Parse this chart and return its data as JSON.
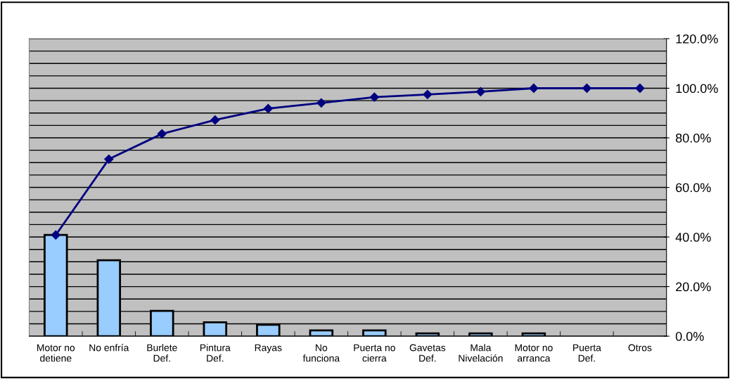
{
  "chart_data": {
    "type": "bar",
    "categories": [
      "Motor no\ndetiene",
      "No enfría",
      "Burlete\nDef.",
      "Pintura\nDef.",
      "Rayas",
      "No\nfunciona",
      "Puerta no\ncierra",
      "Gavetas\nDef.",
      "Mala\nNivelación",
      "Motor no\narranca",
      "Puerta\nDef.",
      "Otros"
    ],
    "series": [
      {
        "color": "#99ccff",
        "values": [
          40.8,
          30.6,
          10.2,
          5.6,
          4.6,
          2.3,
          2.3,
          1.1,
          1.1,
          1.1,
          0,
          0
        ]
      },
      {
        "type": "line",
        "color": "#000080",
        "marker": "diamond",
        "values": [
          40.8,
          71.4,
          81.6,
          87.2,
          91.8,
          94.1,
          96.4,
          97.5,
          98.6,
          100,
          100,
          100
        ]
      }
    ],
    "ylim": [
      0,
      120
    ],
    "yticks": [
      {
        "value": 0,
        "label": "0.0%"
      },
      {
        "value": 5,
        "label": null
      },
      {
        "value": 10,
        "label": null
      },
      {
        "value": 15,
        "label": null
      },
      {
        "value": 20,
        "label": "20.0%"
      },
      {
        "value": 25,
        "label": null
      },
      {
        "value": 30,
        "label": null
      },
      {
        "value": 35,
        "label": null
      },
      {
        "value": 40,
        "label": "40.0%"
      },
      {
        "value": 45,
        "label": null
      },
      {
        "value": 50,
        "label": null
      },
      {
        "value": 55,
        "label": null
      },
      {
        "value": 60,
        "label": "60.0%"
      },
      {
        "value": 65,
        "label": null
      },
      {
        "value": 70,
        "label": null
      },
      {
        "value": 75,
        "label": null
      },
      {
        "value": 80,
        "label": "80.0%"
      },
      {
        "value": 85,
        "label": null
      },
      {
        "value": 90,
        "label": null
      },
      {
        "value": 95,
        "label": null
      },
      {
        "value": 100,
        "label": "100.0%"
      },
      {
        "value": 105,
        "label": null
      },
      {
        "value": 110,
        "label": null
      },
      {
        "value": 115,
        "label": null
      },
      {
        "value": 120,
        "label": "120.0%"
      }
    ],
    "grid": "y",
    "legend": false
  }
}
